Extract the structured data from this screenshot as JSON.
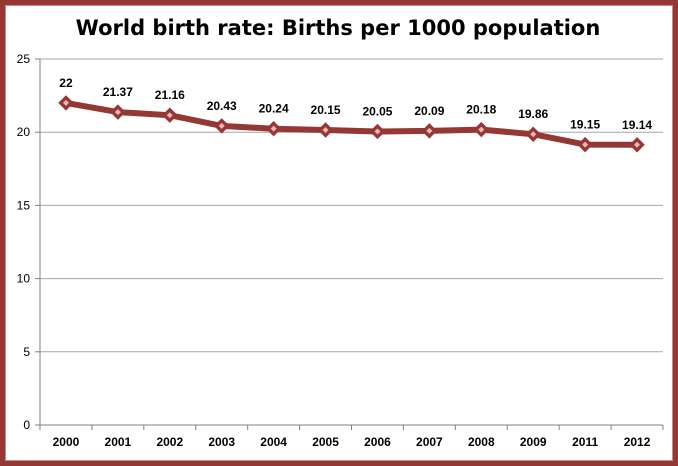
{
  "chart_data": {
    "type": "line",
    "title": "World birth rate:  Births per 1000 population",
    "xlabel": "",
    "ylabel": "",
    "categories": [
      "2000",
      "2001",
      "2002",
      "2003",
      "2004",
      "2005",
      "2006",
      "2007",
      "2008",
      "2009",
      "2011",
      "2012"
    ],
    "series": [
      {
        "values": [
          22,
          21.37,
          21.16,
          20.43,
          20.24,
          20.15,
          20.05,
          20.09,
          20.18,
          19.86,
          19.15,
          19.14
        ],
        "labels": [
          "22",
          "21.37",
          "21.16",
          "20.43",
          "20.24",
          "20.15",
          "20.05",
          "20.09",
          "20.18",
          "19.86",
          "19.15",
          "19.14"
        ],
        "color": "#953735"
      }
    ],
    "ylim": [
      0,
      25
    ],
    "yticks": [
      "0",
      "5",
      "10",
      "15",
      "20",
      "25"
    ],
    "grid": true,
    "legend": "none",
    "frame_color": "#953735"
  }
}
